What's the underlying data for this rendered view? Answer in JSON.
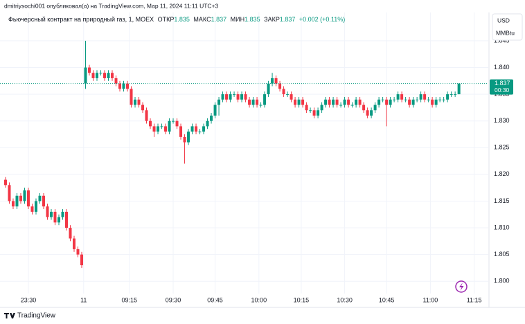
{
  "header": "dmitriysochi001 опубликовал(а) на TradingView.com, Мар 11, 2024 11:11 UTC+3",
  "legend": {
    "symbol": "Фьючерсный контракт на природный газ, 1, MOEX",
    "open_label": "ОТКР",
    "open": 1.835,
    "high_label": "МАКС",
    "high": 1.837,
    "low_label": "МИН",
    "low": 1.835,
    "close_label": "ЗАКР",
    "close": 1.837,
    "change": "+0.002 (+0.11%)"
  },
  "currency": "USD",
  "unit": "MMBtu",
  "price_tag": {
    "value": 1.837,
    "countdown": "00:30"
  },
  "footer": "TradingView",
  "chart_data": {
    "type": "candlestick",
    "up_color": "#089981",
    "down_color": "#f23645",
    "grid": true,
    "ylim": [
      1.7977,
      1.8503
    ],
    "yticks": [
      {
        "value": 1.8,
        "label": "1.800"
      },
      1.805,
      {
        "value": 1.81,
        "label": "1.810"
      },
      1.815,
      {
        "value": 1.82,
        "label": "1.820"
      },
      1.825,
      {
        "value": 1.83,
        "label": "1.830"
      },
      1.835,
      {
        "value": 1.84,
        "label": "1.840"
      },
      1.845
    ],
    "xlim": [
      -1.45,
      126.7
    ],
    "xticks": [
      {
        "value": 6,
        "label": "23:30"
      },
      {
        "value": 20.5,
        "label": "11"
      },
      {
        "value": 32.5,
        "label": "09:15"
      },
      {
        "value": 44,
        "label": "09:30"
      },
      {
        "value": 55,
        "label": "09:45"
      },
      {
        "value": 66.5,
        "label": "10:00"
      },
      {
        "value": 77.6,
        "label": "10:15"
      },
      {
        "value": 89,
        "label": "10:30"
      },
      {
        "value": 100,
        "label": "10:45"
      },
      {
        "value": 111.5,
        "label": "11:00"
      },
      {
        "value": 123,
        "label": "11:15"
      }
    ],
    "open": [
      1.819,
      1.818,
      1.815,
      1.814,
      1.816,
      1.815,
      1.817,
      1.814,
      1.813,
      1.815,
      1.816,
      1.814,
      1.812,
      1.813,
      1.811,
      1.812,
      1.813,
      1.81,
      1.808,
      1.806,
      1.805,
      1.837,
      1.84,
      1.839,
      1.838,
      1.839,
      1.839,
      1.838,
      1.839,
      1.838,
      1.837,
      1.836,
      1.837,
      1.836,
      1.833,
      1.834,
      1.833,
      1.832,
      1.83,
      1.829,
      1.828,
      1.829,
      1.829,
      1.828,
      1.83,
      1.83,
      1.829,
      1.827,
      1.826,
      1.828,
      1.829,
      1.828,
      1.828,
      1.829,
      1.83,
      1.831,
      1.833,
      1.834,
      1.835,
      1.834,
      1.835,
      1.835,
      1.834,
      1.835,
      1.834,
      1.833,
      1.834,
      1.833,
      1.833,
      1.835,
      1.837,
      1.838,
      1.837,
      1.836,
      1.835,
      1.835,
      1.834,
      1.833,
      1.834,
      1.833,
      1.832,
      1.832,
      1.831,
      1.832,
      1.833,
      1.834,
      1.833,
      1.834,
      1.833,
      1.833,
      1.834,
      1.833,
      1.833,
      1.834,
      1.833,
      1.832,
      1.831,
      1.832,
      1.833,
      1.834,
      1.834,
      1.833,
      1.834,
      1.834,
      1.835,
      1.834,
      1.834,
      1.833,
      1.834,
      1.834,
      1.835,
      1.834,
      1.834,
      1.833,
      1.834,
      1.834,
      1.834,
      1.835,
      1.835,
      1.835
    ],
    "high": [
      1.8195,
      1.8185,
      1.8155,
      1.8165,
      1.8165,
      1.8175,
      1.8175,
      1.8145,
      1.8155,
      1.8165,
      1.8165,
      1.8145,
      1.8135,
      1.8135,
      1.8125,
      1.8135,
      1.8135,
      1.8105,
      1.8085,
      1.8065,
      1.8055,
      1.845,
      1.8405,
      1.8395,
      1.8395,
      1.8395,
      1.8395,
      1.8395,
      1.8395,
      1.8385,
      1.8375,
      1.8375,
      1.8375,
      1.8365,
      1.8345,
      1.8345,
      1.8335,
      1.8325,
      1.8305,
      1.8295,
      1.8295,
      1.8295,
      1.8295,
      1.8305,
      1.8305,
      1.8305,
      1.8295,
      1.8275,
      1.8285,
      1.8295,
      1.8295,
      1.8285,
      1.8295,
      1.8305,
      1.8315,
      1.8335,
      1.8345,
      1.8355,
      1.8355,
      1.8355,
      1.8355,
      1.8355,
      1.8355,
      1.8355,
      1.8345,
      1.8345,
      1.8345,
      1.8335,
      1.8355,
      1.8375,
      1.839,
      1.8385,
      1.8375,
      1.8365,
      1.8355,
      1.8355,
      1.8345,
      1.8345,
      1.8345,
      1.8335,
      1.8325,
      1.8325,
      1.8325,
      1.8335,
      1.8345,
      1.8345,
      1.8345,
      1.8345,
      1.8335,
      1.8345,
      1.8345,
      1.8335,
      1.8345,
      1.8345,
      1.8335,
      1.8325,
      1.8325,
      1.8335,
      1.8345,
      1.8345,
      1.8345,
      1.8345,
      1.8345,
      1.8355,
      1.8355,
      1.8345,
      1.8345,
      1.8345,
      1.8345,
      1.8355,
      1.8355,
      1.8345,
      1.8345,
      1.8345,
      1.8345,
      1.8345,
      1.8355,
      1.8355,
      1.8355,
      1.837
    ],
    "low": [
      1.8175,
      1.8145,
      1.8135,
      1.8135,
      1.8145,
      1.8145,
      1.8135,
      1.8125,
      1.8125,
      1.8145,
      1.8135,
      1.8115,
      1.8115,
      1.8105,
      1.8105,
      1.8115,
      1.8095,
      1.8075,
      1.8055,
      1.8045,
      1.8025,
      1.836,
      1.8385,
      1.8375,
      1.8375,
      1.8385,
      1.8375,
      1.8375,
      1.8375,
      1.8365,
      1.8355,
      1.8355,
      1.8355,
      1.8325,
      1.8325,
      1.8325,
      1.8315,
      1.8295,
      1.8285,
      1.827,
      1.8275,
      1.8285,
      1.8275,
      1.8275,
      1.8295,
      1.8285,
      1.8265,
      1.822,
      1.8255,
      1.8275,
      1.8275,
      1.8275,
      1.8275,
      1.8285,
      1.8295,
      1.8305,
      1.831,
      1.8335,
      1.8335,
      1.8335,
      1.8345,
      1.8335,
      1.8335,
      1.8335,
      1.8325,
      1.8325,
      1.8325,
      1.8325,
      1.8325,
      1.8345,
      1.8365,
      1.8365,
      1.8355,
      1.8345,
      1.8345,
      1.8335,
      1.8325,
      1.8325,
      1.8325,
      1.8315,
      1.8315,
      1.8305,
      1.8305,
      1.8315,
      1.8325,
      1.8325,
      1.8325,
      1.8325,
      1.8325,
      1.8325,
      1.8325,
      1.8325,
      1.8325,
      1.8325,
      1.8315,
      1.8305,
      1.8305,
      1.8315,
      1.8325,
      1.8335,
      1.829,
      1.8325,
      1.8335,
      1.8335,
      1.8335,
      1.8335,
      1.8325,
      1.8325,
      1.8335,
      1.8335,
      1.8335,
      1.8335,
      1.8325,
      1.8325,
      1.8335,
      1.8335,
      1.8335,
      1.8345,
      1.8345,
      1.835
    ],
    "close": [
      1.818,
      1.815,
      1.814,
      1.816,
      1.815,
      1.817,
      1.814,
      1.813,
      1.815,
      1.816,
      1.814,
      1.812,
      1.813,
      1.811,
      1.812,
      1.813,
      1.81,
      1.808,
      1.806,
      1.805,
      1.803,
      1.84,
      1.839,
      1.838,
      1.839,
      1.839,
      1.838,
      1.839,
      1.838,
      1.837,
      1.836,
      1.837,
      1.836,
      1.833,
      1.834,
      1.833,
      1.832,
      1.83,
      1.829,
      1.828,
      1.829,
      1.829,
      1.828,
      1.83,
      1.83,
      1.829,
      1.827,
      1.826,
      1.828,
      1.829,
      1.828,
      1.828,
      1.829,
      1.83,
      1.831,
      1.833,
      1.834,
      1.835,
      1.834,
      1.835,
      1.835,
      1.834,
      1.835,
      1.834,
      1.833,
      1.834,
      1.833,
      1.833,
      1.835,
      1.837,
      1.838,
      1.837,
      1.836,
      1.835,
      1.835,
      1.834,
      1.833,
      1.834,
      1.833,
      1.832,
      1.832,
      1.831,
      1.832,
      1.833,
      1.834,
      1.833,
      1.834,
      1.833,
      1.833,
      1.834,
      1.833,
      1.833,
      1.834,
      1.833,
      1.832,
      1.831,
      1.832,
      1.833,
      1.834,
      1.834,
      1.833,
      1.834,
      1.834,
      1.835,
      1.834,
      1.834,
      1.833,
      1.834,
      1.834,
      1.835,
      1.834,
      1.834,
      1.833,
      1.834,
      1.834,
      1.834,
      1.835,
      1.835,
      1.835,
      1.837
    ]
  }
}
